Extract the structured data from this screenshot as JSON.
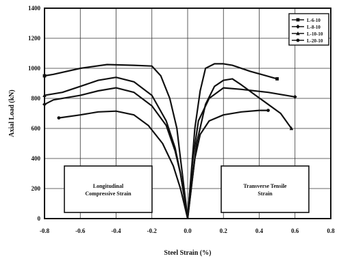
{
  "chart_data": {
    "type": "line",
    "xlabel": "Steel Strain (%)",
    "ylabel": "Axial Load (kN)",
    "xlim": [
      -0.8,
      0.8
    ],
    "ylim": [
      0,
      1400
    ],
    "x_ticks": [
      -0.8,
      -0.6,
      -0.4,
      -0.2,
      0.0,
      0.2,
      0.4,
      0.6,
      0.8
    ],
    "x_tick_labels": [
      "-0.8",
      "-0.6",
      "-0.4",
      "-0.2",
      "0.0",
      "0.2",
      "0.4",
      "0.6",
      "0.8"
    ],
    "y_ticks": [
      0,
      200,
      400,
      600,
      800,
      1000,
      1200,
      1400
    ],
    "y_tick_labels": [
      "0",
      "200",
      "400",
      "600",
      "800",
      "1000",
      "1200",
      "1400"
    ],
    "grid": true,
    "legend_position": "top-right",
    "annotations": [
      {
        "lines": [
          "Longitudinal",
          "Compressive Strain"
        ],
        "x": -0.6,
        "y": 160
      },
      {
        "lines": [
          "Transverse Tensile",
          "Strain"
        ],
        "x": 0.4,
        "y": 160
      }
    ],
    "series": [
      {
        "name": "L-6-10",
        "longitudinal": [
          [
            0,
            0
          ],
          [
            -0.01,
            100
          ],
          [
            -0.02,
            200
          ],
          [
            -0.03,
            300
          ],
          [
            -0.04,
            400
          ],
          [
            -0.06,
            600
          ],
          [
            -0.1,
            800
          ],
          [
            -0.15,
            950
          ],
          [
            -0.2,
            1015
          ],
          [
            -0.3,
            1020
          ],
          [
            -0.45,
            1025
          ],
          [
            -0.6,
            1000
          ],
          [
            -0.75,
            960
          ],
          [
            -0.8,
            950
          ]
        ],
        "transverse": [
          [
            0,
            0
          ],
          [
            0.01,
            150
          ],
          [
            0.02,
            300
          ],
          [
            0.04,
            600
          ],
          [
            0.07,
            850
          ],
          [
            0.1,
            1000
          ],
          [
            0.15,
            1030
          ],
          [
            0.2,
            1030
          ],
          [
            0.25,
            1020
          ],
          [
            0.35,
            980
          ],
          [
            0.5,
            930
          ]
        ]
      },
      {
        "name": "L-8-10",
        "longitudinal": [
          [
            0,
            0
          ],
          [
            -0.02,
            150
          ],
          [
            -0.04,
            300
          ],
          [
            -0.07,
            450
          ],
          [
            -0.12,
            620
          ],
          [
            -0.2,
            750
          ],
          [
            -0.3,
            840
          ],
          [
            -0.4,
            870
          ],
          [
            -0.5,
            850
          ],
          [
            -0.6,
            820
          ],
          [
            -0.75,
            790
          ],
          [
            -0.8,
            760
          ]
        ],
        "transverse": [
          [
            0,
            0
          ],
          [
            0.01,
            150
          ],
          [
            0.03,
            400
          ],
          [
            0.06,
            650
          ],
          [
            0.12,
            800
          ],
          [
            0.2,
            870
          ],
          [
            0.3,
            860
          ],
          [
            0.45,
            840
          ],
          [
            0.6,
            810
          ]
        ]
      },
      {
        "name": "L-10-10",
        "longitudinal": [
          [
            0,
            0
          ],
          [
            -0.02,
            150
          ],
          [
            -0.04,
            300
          ],
          [
            -0.07,
            470
          ],
          [
            -0.12,
            650
          ],
          [
            -0.2,
            820
          ],
          [
            -0.3,
            910
          ],
          [
            -0.4,
            940
          ],
          [
            -0.5,
            920
          ],
          [
            -0.6,
            880
          ],
          [
            -0.7,
            840
          ],
          [
            -0.8,
            820
          ]
        ],
        "transverse": [
          [
            0,
            0
          ],
          [
            0.02,
            200
          ],
          [
            0.05,
            500
          ],
          [
            0.1,
            760
          ],
          [
            0.15,
            880
          ],
          [
            0.2,
            920
          ],
          [
            0.25,
            930
          ],
          [
            0.3,
            890
          ],
          [
            0.38,
            820
          ],
          [
            0.45,
            760
          ],
          [
            0.52,
            700
          ],
          [
            0.58,
            600
          ]
        ]
      },
      {
        "name": "L-20-10",
        "longitudinal": [
          [
            0,
            0
          ],
          [
            -0.02,
            100
          ],
          [
            -0.04,
            200
          ],
          [
            -0.08,
            350
          ],
          [
            -0.14,
            500
          ],
          [
            -0.22,
            620
          ],
          [
            -0.3,
            690
          ],
          [
            -0.4,
            715
          ],
          [
            -0.5,
            710
          ],
          [
            -0.6,
            690
          ],
          [
            -0.72,
            670
          ]
        ],
        "transverse": [
          [
            0,
            0
          ],
          [
            0.02,
            200
          ],
          [
            0.04,
            400
          ],
          [
            0.07,
            560
          ],
          [
            0.12,
            650
          ],
          [
            0.2,
            690
          ],
          [
            0.3,
            710
          ],
          [
            0.4,
            720
          ],
          [
            0.45,
            720
          ]
        ]
      }
    ]
  }
}
